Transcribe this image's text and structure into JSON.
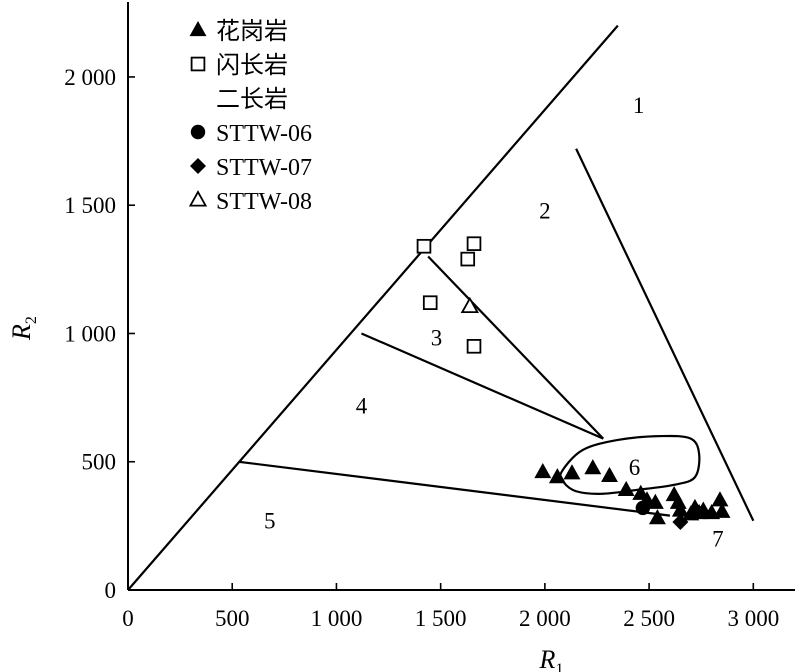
{
  "chart_data": {
    "type": "scatter",
    "title": "",
    "xlabel": "R",
    "xlabel_sub": "1",
    "ylabel": "R",
    "ylabel_sub": "2",
    "xlim": [
      0,
      3200
    ],
    "ylim": [
      0,
      2300
    ],
    "x_ticks": [
      {
        "value": 0,
        "label": "0"
      },
      {
        "value": 500,
        "label": "500"
      },
      {
        "value": 1000,
        "label": "1 000"
      },
      {
        "value": 1500,
        "label": "1 500"
      },
      {
        "value": 2000,
        "label": "2 000"
      },
      {
        "value": 2500,
        "label": "2 500"
      },
      {
        "value": 3000,
        "label": "3 000"
      }
    ],
    "y_ticks": [
      {
        "value": 0,
        "label": "0"
      },
      {
        "value": 500,
        "label": "500"
      },
      {
        "value": 1000,
        "label": "1 000"
      },
      {
        "value": 1500,
        "label": "1 500"
      },
      {
        "value": 2000,
        "label": "2 000"
      }
    ],
    "legend": [
      {
        "label": "花岗岩",
        "marker": "triangle-filled"
      },
      {
        "label": "闪长岩",
        "marker": "square-open"
      },
      {
        "label": "二长岩",
        "marker": "none"
      },
      {
        "label": "STTW-06",
        "marker": "circle-filled"
      },
      {
        "label": "STTW-07",
        "marker": "diamond-filled"
      },
      {
        "label": "STTW-08",
        "marker": "triangle-open"
      }
    ],
    "legend_position": "top-left",
    "region_labels": [
      {
        "label": "1",
        "x": 2450,
        "y": 1890
      },
      {
        "label": "2",
        "x": 2000,
        "y": 1480
      },
      {
        "label": "3",
        "x": 1480,
        "y": 985
      },
      {
        "label": "4",
        "x": 1120,
        "y": 720
      },
      {
        "label": "5",
        "x": 680,
        "y": 270
      },
      {
        "label": "6",
        "x": 2430,
        "y": 480
      },
      {
        "label": "7",
        "x": 2830,
        "y": 200
      }
    ],
    "boundary_lines": [
      {
        "name": "diagonal",
        "points": [
          [
            0,
            0
          ],
          [
            2350,
            2200
          ]
        ]
      },
      {
        "name": "line-1-2",
        "points": [
          [
            2150,
            1720
          ],
          [
            3000,
            270
          ]
        ]
      },
      {
        "name": "line-2-3",
        "points": [
          [
            1440,
            1300
          ],
          [
            2280,
            590
          ]
        ]
      },
      {
        "name": "line-3-4",
        "points": [
          [
            1120,
            1000
          ],
          [
            2280,
            590
          ]
        ]
      },
      {
        "name": "line-4-5",
        "points": [
          [
            530,
            500
          ],
          [
            2600,
            290
          ]
        ]
      }
    ],
    "field_6_outline": [
      [
        2080,
        460
      ],
      [
        2180,
        545
      ],
      [
        2350,
        585
      ],
      [
        2560,
        600
      ],
      [
        2700,
        590
      ],
      [
        2740,
        530
      ],
      [
        2720,
        440
      ],
      [
        2620,
        410
      ],
      [
        2440,
        390
      ],
      [
        2270,
        375
      ],
      [
        2150,
        385
      ],
      [
        2090,
        420
      ]
    ],
    "series": [
      {
        "name": "花岗岩",
        "marker": "triangle-filled",
        "points": [
          [
            1990,
            460
          ],
          [
            2060,
            440
          ],
          [
            2130,
            455
          ],
          [
            2230,
            475
          ],
          [
            2310,
            445
          ],
          [
            2390,
            390
          ],
          [
            2460,
            375
          ],
          [
            2490,
            350
          ],
          [
            2530,
            340
          ],
          [
            2540,
            280
          ],
          [
            2620,
            370
          ],
          [
            2640,
            340
          ],
          [
            2650,
            310
          ],
          [
            2700,
            295
          ],
          [
            2720,
            320
          ],
          [
            2740,
            300
          ],
          [
            2760,
            310
          ],
          [
            2800,
            300
          ],
          [
            2840,
            350
          ],
          [
            2850,
            305
          ]
        ]
      },
      {
        "name": "闪长岩",
        "marker": "square-open",
        "points": [
          [
            1420,
            1340
          ],
          [
            1450,
            1120
          ],
          [
            1630,
            1290
          ],
          [
            1660,
            1350
          ],
          [
            1660,
            950
          ]
        ]
      },
      {
        "name": "STTW-06",
        "marker": "circle-filled",
        "points": [
          [
            2470,
            320
          ]
        ]
      },
      {
        "name": "STTW-07",
        "marker": "diamond-filled",
        "points": [
          [
            2650,
            265
          ]
        ]
      },
      {
        "name": "STTW-08",
        "marker": "triangle-open",
        "points": [
          [
            1640,
            1105
          ]
        ]
      }
    ]
  }
}
